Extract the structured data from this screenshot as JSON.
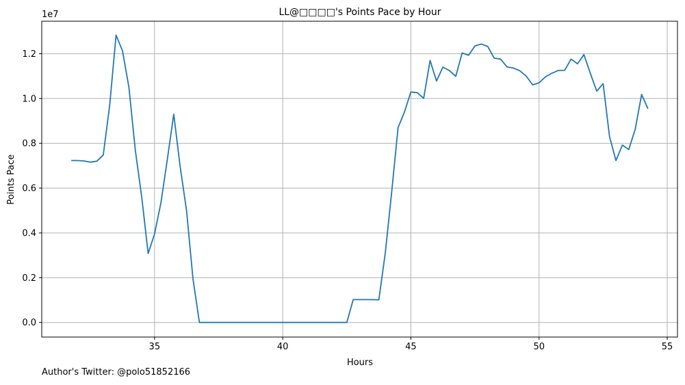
{
  "chart_data": {
    "type": "line",
    "title": "LL@□□□□'s Points Pace by Hour",
    "xlabel": "Hours",
    "ylabel": "Points Pace",
    "y_offset_label": "1e7",
    "xlim": [
      30.6,
      55.4
    ],
    "ylim": [
      -0.065,
      1.345
    ],
    "x_ticks": [
      35,
      40,
      45,
      50,
      55
    ],
    "y_ticks": [
      0.0,
      0.2,
      0.4,
      0.6,
      0.8,
      1.0,
      1.2
    ],
    "grid": true,
    "line_color": "#1f77b4",
    "series": [
      {
        "x": [
          31.75,
          32.0,
          32.25,
          32.5,
          32.75,
          33.0,
          33.25,
          33.5,
          33.75,
          34.0,
          34.25,
          34.5,
          34.75,
          35.0,
          35.25,
          35.5,
          35.75,
          36.0,
          36.25,
          36.5,
          36.75,
          37.0,
          37.5,
          38.0,
          38.5,
          39.0,
          39.5,
          40.0,
          40.5,
          41.0,
          41.5,
          42.0,
          42.5,
          42.75,
          43.0,
          43.25,
          43.5,
          43.75,
          44.0,
          44.25,
          44.5,
          44.75,
          45.0,
          45.25,
          45.5,
          45.75,
          46.0,
          46.25,
          46.5,
          46.75,
          47.0,
          47.25,
          47.5,
          47.75,
          48.0,
          48.25,
          48.5,
          48.75,
          49.0,
          49.25,
          49.5,
          49.75,
          50.0,
          50.25,
          50.5,
          50.75,
          51.0,
          51.25,
          51.5,
          51.75,
          52.0,
          52.25,
          52.5,
          52.75,
          53.0,
          53.25,
          53.5,
          53.75,
          54.0,
          54.25
        ],
        "values": [
          0.723,
          0.723,
          0.721,
          0.716,
          0.72,
          0.748,
          0.97,
          1.283,
          1.213,
          1.05,
          0.77,
          0.56,
          0.308,
          0.395,
          0.535,
          0.73,
          0.93,
          0.695,
          0.5,
          0.195,
          0.0,
          0.0,
          0.0,
          0.0,
          0.0,
          0.0,
          0.0,
          0.0,
          0.0,
          0.0,
          0.0,
          0.0,
          0.0,
          0.102,
          0.102,
          0.102,
          0.102,
          0.101,
          0.31,
          0.58,
          0.87,
          0.94,
          1.029,
          1.026,
          1.001,
          1.17,
          1.078,
          1.14,
          1.125,
          1.099,
          1.203,
          1.193,
          1.235,
          1.243,
          1.232,
          1.18,
          1.176,
          1.141,
          1.136,
          1.124,
          1.1,
          1.061,
          1.07,
          1.097,
          1.113,
          1.125,
          1.126,
          1.176,
          1.155,
          1.196,
          1.113,
          1.033,
          1.066,
          0.83,
          0.723,
          0.792,
          0.772,
          0.862,
          1.018,
          0.954
        ]
      }
    ]
  },
  "footer": {
    "author": "Author's Twitter: @polo51852166"
  }
}
